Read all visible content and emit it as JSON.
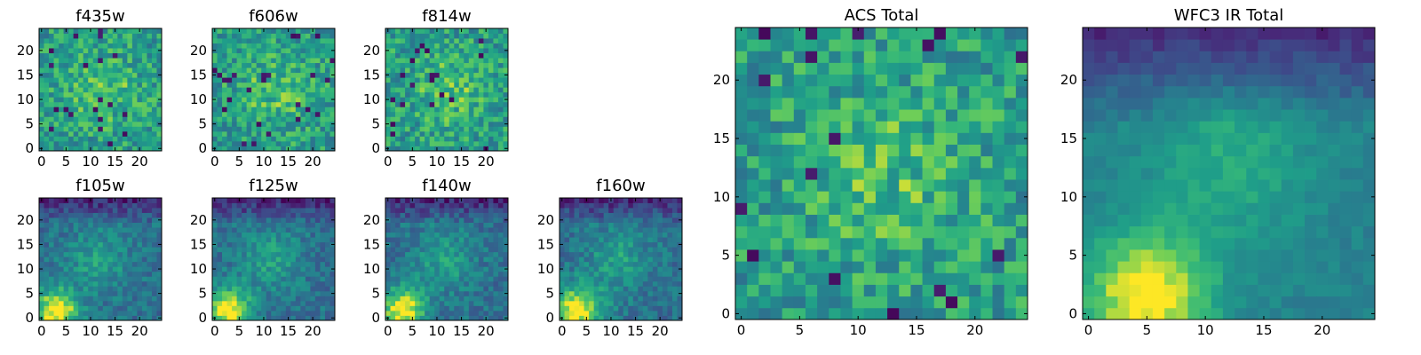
{
  "chart_data": [
    {
      "type": "heatmap",
      "title": "f435w",
      "seed": 11,
      "style": "flat",
      "x_ticks": [
        "0",
        "5",
        "10",
        "15",
        "20"
      ],
      "y_ticks": [
        "0",
        "5",
        "10",
        "15",
        "20"
      ],
      "xlim": [
        -0.5,
        24.5
      ],
      "ylim": [
        -0.5,
        24.5
      ],
      "colormap": "viridis"
    },
    {
      "type": "heatmap",
      "title": "f606w",
      "seed": 23,
      "style": "flat",
      "x_ticks": [
        "0",
        "5",
        "10",
        "15",
        "20"
      ],
      "y_ticks": [
        "0",
        "5",
        "10",
        "15",
        "20"
      ],
      "xlim": [
        -0.5,
        24.5
      ],
      "ylim": [
        -0.5,
        24.5
      ],
      "colormap": "viridis"
    },
    {
      "type": "heatmap",
      "title": "f814w",
      "seed": 37,
      "style": "flat",
      "x_ticks": [
        "0",
        "5",
        "10",
        "15",
        "20"
      ],
      "y_ticks": [
        "0",
        "5",
        "10",
        "15",
        "20"
      ],
      "xlim": [
        -0.5,
        24.5
      ],
      "ylim": [
        -0.5,
        24.5
      ],
      "colormap": "viridis"
    },
    {
      "type": "heatmap",
      "title": "f105w",
      "seed": 41,
      "style": "ir",
      "x_ticks": [
        "0",
        "5",
        "10",
        "15",
        "20"
      ],
      "y_ticks": [
        "0",
        "5",
        "10",
        "15",
        "20"
      ],
      "xlim": [
        -0.5,
        24.5
      ],
      "ylim": [
        -0.5,
        24.5
      ],
      "colormap": "viridis"
    },
    {
      "type": "heatmap",
      "title": "f125w",
      "seed": 53,
      "style": "ir",
      "x_ticks": [
        "0",
        "5",
        "10",
        "15",
        "20"
      ],
      "y_ticks": [
        "0",
        "5",
        "10",
        "15",
        "20"
      ],
      "xlim": [
        -0.5,
        24.5
      ],
      "ylim": [
        -0.5,
        24.5
      ],
      "colormap": "viridis"
    },
    {
      "type": "heatmap",
      "title": "f140w",
      "seed": 67,
      "style": "ir",
      "x_ticks": [
        "0",
        "5",
        "10",
        "15",
        "20"
      ],
      "y_ticks": [
        "0",
        "5",
        "10",
        "15",
        "20"
      ],
      "xlim": [
        -0.5,
        24.5
      ],
      "ylim": [
        -0.5,
        24.5
      ],
      "colormap": "viridis"
    },
    {
      "type": "heatmap",
      "title": "f160w",
      "seed": 79,
      "style": "ir2",
      "x_ticks": [
        "0",
        "5",
        "10",
        "15",
        "20"
      ],
      "y_ticks": [
        "0",
        "5",
        "10",
        "15",
        "20"
      ],
      "xlim": [
        -0.5,
        24.5
      ],
      "ylim": [
        -0.5,
        24.5
      ],
      "colormap": "viridis"
    },
    {
      "type": "heatmap",
      "title": "ACS Total",
      "seed": 97,
      "style": "acs",
      "x_ticks": [
        "0",
        "5",
        "10",
        "15",
        "20"
      ],
      "y_ticks": [
        "0",
        "5",
        "10",
        "15",
        "20"
      ],
      "xlim": [
        -0.5,
        24.5
      ],
      "ylim": [
        -0.5,
        24.5
      ],
      "colormap": "viridis"
    },
    {
      "type": "heatmap",
      "title": "WFC3 IR Total",
      "seed": 101,
      "style": "irt",
      "x_ticks": [
        "0",
        "5",
        "10",
        "15",
        "20"
      ],
      "y_ticks": [
        "0",
        "5",
        "10",
        "15",
        "20"
      ],
      "xlim": [
        -0.5,
        24.5
      ],
      "ylim": [
        -0.5,
        24.5
      ],
      "colormap": "viridis"
    }
  ]
}
